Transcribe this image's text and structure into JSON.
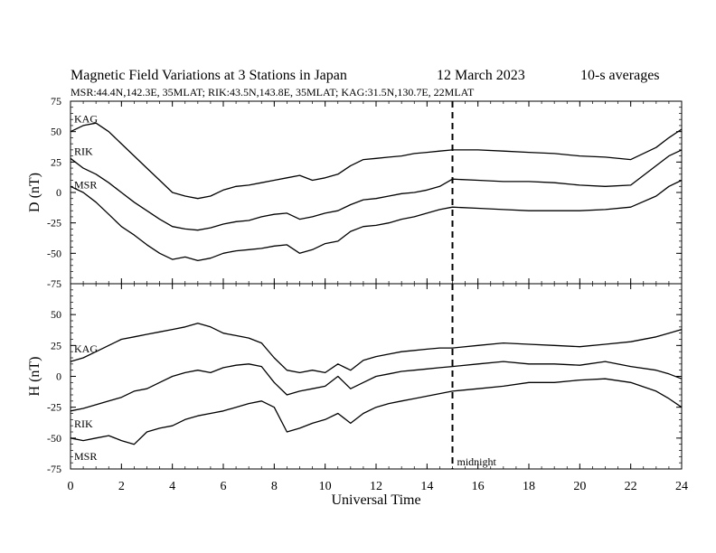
{
  "header": {
    "title": "Magnetic Field Variations at 3 Stations in Japan",
    "date": "12 March   2023",
    "averaging": "10-s averages",
    "stations_line": "MSR:44.4N,142.3E, 35MLAT;  RIK:43.5N,143.8E, 35MLAT;  KAG:31.5N,130.7E, 22MLAT"
  },
  "chart_data": [
    {
      "type": "line",
      "ylabel": "D (nT)",
      "xlim": [
        0,
        24
      ],
      "ylim": [
        -75,
        75
      ],
      "yticks": [
        "75",
        "50",
        "25",
        "0",
        "-25",
        "-50",
        "-75"
      ],
      "grid": false,
      "series": [
        {
          "name": "KAG",
          "x": [
            0,
            0.5,
            1,
            1.5,
            2,
            2.5,
            3,
            3.5,
            4,
            4.5,
            5,
            5.5,
            6,
            6.5,
            7,
            7.5,
            8,
            8.5,
            9,
            9.5,
            10,
            10.5,
            11,
            11.5,
            12,
            12.5,
            13,
            13.5,
            14,
            14.5,
            15,
            16,
            17,
            18,
            19,
            20,
            21,
            22,
            23,
            23.5,
            24
          ],
          "values": [
            50,
            55,
            57,
            50,
            40,
            30,
            20,
            10,
            0,
            -3,
            -5,
            -3,
            2,
            5,
            6,
            8,
            10,
            12,
            14,
            10,
            12,
            15,
            22,
            27,
            28,
            29,
            30,
            32,
            33,
            34,
            35,
            35,
            34,
            33,
            32,
            30,
            29,
            27,
            37,
            45,
            52
          ]
        },
        {
          "name": "RIK",
          "x": [
            0,
            0.5,
            1,
            1.5,
            2,
            2.5,
            3,
            3.5,
            4,
            4.5,
            5,
            5.5,
            6,
            6.5,
            7,
            7.5,
            8,
            8.5,
            9,
            9.5,
            10,
            10.5,
            11,
            11.5,
            12,
            12.5,
            13,
            13.5,
            14,
            14.5,
            15,
            16,
            17,
            18,
            19,
            20,
            21,
            22,
            23,
            23.5,
            24
          ],
          "values": [
            28,
            20,
            15,
            8,
            0,
            -8,
            -15,
            -22,
            -28,
            -30,
            -31,
            -29,
            -26,
            -24,
            -23,
            -20,
            -18,
            -17,
            -22,
            -20,
            -17,
            -15,
            -10,
            -6,
            -5,
            -3,
            -1,
            0,
            2,
            5,
            11,
            10,
            9,
            9,
            8,
            6,
            5,
            6,
            22,
            30,
            35
          ]
        },
        {
          "name": "MSR",
          "x": [
            0,
            0.5,
            1,
            1.5,
            2,
            2.5,
            3,
            3.5,
            4,
            4.5,
            5,
            5.5,
            6,
            6.5,
            7,
            7.5,
            8,
            8.5,
            9,
            9.5,
            10,
            10.5,
            11,
            11.5,
            12,
            12.5,
            13,
            13.5,
            14,
            14.5,
            15,
            16,
            17,
            18,
            19,
            20,
            21,
            22,
            23,
            23.5,
            24
          ],
          "values": [
            5,
            0,
            -8,
            -18,
            -28,
            -35,
            -43,
            -50,
            -55,
            -53,
            -56,
            -54,
            -50,
            -48,
            -47,
            -46,
            -44,
            -43,
            -50,
            -47,
            -42,
            -40,
            -32,
            -28,
            -27,
            -25,
            -22,
            -20,
            -17,
            -14,
            -12,
            -13,
            -14,
            -15,
            -15,
            -15,
            -14,
            -12,
            -3,
            5,
            10
          ]
        }
      ]
    },
    {
      "type": "line",
      "ylabel": "H (nT)",
      "xlabel": "Universal Time",
      "xlim": [
        0,
        24
      ],
      "ylim": [
        -75,
        75
      ],
      "xticks": [
        "0",
        "2",
        "4",
        "6",
        "8",
        "10",
        "12",
        "14",
        "16",
        "18",
        "20",
        "22",
        "24"
      ],
      "yticks": [
        "50",
        "25",
        "0",
        "-25",
        "-50",
        "-75"
      ],
      "grid": false,
      "annotation": {
        "x": 15,
        "text": "midnight"
      },
      "series": [
        {
          "name": "KAG",
          "x": [
            0,
            0.5,
            1,
            1.5,
            2,
            2.5,
            3,
            3.5,
            4,
            4.5,
            5,
            5.5,
            6,
            6.5,
            7,
            7.5,
            8,
            8.5,
            9,
            9.5,
            10,
            10.5,
            11,
            11.5,
            12,
            12.5,
            13,
            13.5,
            14,
            14.5,
            15,
            16,
            17,
            18,
            19,
            20,
            21,
            22,
            23,
            23.5,
            24
          ],
          "values": [
            12,
            15,
            20,
            25,
            30,
            32,
            34,
            36,
            38,
            40,
            43,
            40,
            35,
            33,
            31,
            27,
            15,
            5,
            3,
            5,
            3,
            10,
            5,
            13,
            16,
            18,
            20,
            21,
            22,
            23,
            23,
            25,
            27,
            26,
            25,
            24,
            26,
            28,
            32,
            35,
            38
          ]
        },
        {
          "name": "RIK",
          "x": [
            0,
            0.5,
            1,
            1.5,
            2,
            2.5,
            3,
            3.5,
            4,
            4.5,
            5,
            5.5,
            6,
            6.5,
            7,
            7.5,
            8,
            8.5,
            9,
            9.5,
            10,
            10.5,
            11,
            11.5,
            12,
            12.5,
            13,
            13.5,
            14,
            14.5,
            15,
            16,
            17,
            18,
            19,
            20,
            21,
            22,
            23,
            23.5,
            24
          ],
          "values": [
            -28,
            -26,
            -23,
            -20,
            -17,
            -12,
            -10,
            -5,
            0,
            3,
            5,
            3,
            7,
            9,
            10,
            8,
            -5,
            -15,
            -12,
            -10,
            -8,
            0,
            -10,
            -5,
            0,
            2,
            4,
            5,
            6,
            7,
            8,
            10,
            12,
            10,
            10,
            9,
            12,
            8,
            5,
            2,
            -2
          ]
        },
        {
          "name": "MSR",
          "x": [
            0,
            0.5,
            1,
            1.5,
            2,
            2.5,
            3,
            3.5,
            4,
            4.5,
            5,
            5.5,
            6,
            6.5,
            7,
            7.5,
            8,
            8.5,
            9,
            9.5,
            10,
            10.5,
            11,
            11.5,
            12,
            12.5,
            13,
            13.5,
            14,
            14.5,
            15,
            16,
            17,
            18,
            19,
            20,
            21,
            22,
            23,
            23.5,
            24
          ],
          "values": [
            -50,
            -52,
            -50,
            -48,
            -52,
            -55,
            -45,
            -42,
            -40,
            -35,
            -32,
            -30,
            -28,
            -25,
            -22,
            -20,
            -25,
            -45,
            -42,
            -38,
            -35,
            -30,
            -38,
            -30,
            -25,
            -22,
            -20,
            -18,
            -16,
            -14,
            -12,
            -10,
            -8,
            -5,
            -5,
            -3,
            -2,
            -5,
            -12,
            -18,
            -25
          ]
        }
      ]
    }
  ]
}
